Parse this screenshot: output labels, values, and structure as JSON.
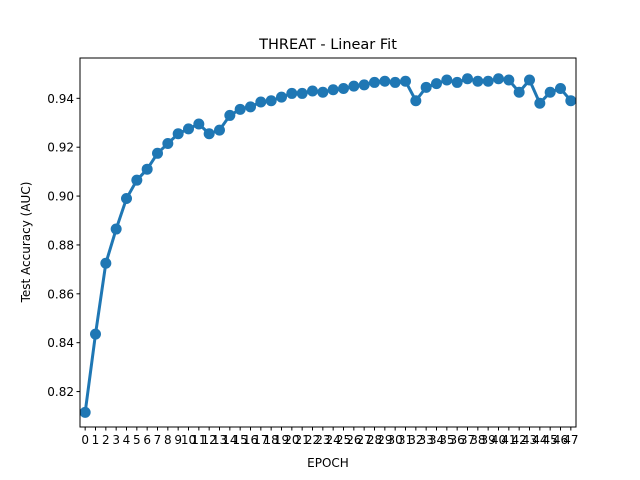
{
  "chart_data": {
    "type": "line",
    "title": "THREAT - Linear Fit",
    "xlabel": "EPOCH",
    "ylabel": "Test Accuracy (AUC)",
    "categories": [
      "0",
      "1",
      "2",
      "3",
      "4",
      "5",
      "6",
      "7",
      "8",
      "9",
      "10",
      "11",
      "12",
      "13",
      "14",
      "15",
      "16",
      "17",
      "18",
      "19",
      "20",
      "21",
      "22",
      "23",
      "24",
      "25",
      "26",
      "27",
      "28",
      "29",
      "30",
      "31",
      "32",
      "33",
      "34",
      "35",
      "36",
      "37",
      "38",
      "39",
      "40",
      "41",
      "42",
      "43",
      "44",
      "45",
      "46",
      "47"
    ],
    "series": [
      {
        "values": [
          0.8115,
          0.8435,
          0.8725,
          0.8865,
          0.899,
          0.9065,
          0.911,
          0.9175,
          0.9215,
          0.9255,
          0.9275,
          0.9295,
          0.9255,
          0.927,
          0.933,
          0.9355,
          0.9365,
          0.9385,
          0.939,
          0.9405,
          0.942,
          0.942,
          0.943,
          0.9425,
          0.9435,
          0.944,
          0.945,
          0.9455,
          0.9465,
          0.947,
          0.9465,
          0.947,
          0.939,
          0.9445,
          0.946,
          0.9475,
          0.9465,
          0.948,
          0.947,
          0.947,
          0.948,
          0.9475,
          0.9425,
          0.9475,
          0.938,
          0.9425,
          0.944,
          0.939
        ],
        "color": "#1f77b4"
      }
    ],
    "ylim": [
      0.8055,
      0.9565
    ],
    "yticks": [
      0.82,
      0.84,
      0.86,
      0.88,
      0.9,
      0.92,
      0.94
    ],
    "ytick_labels": [
      "0.82",
      "0.84",
      "0.86",
      "0.88",
      "0.90",
      "0.92",
      "0.94"
    ],
    "grid": false,
    "legend": false
  }
}
